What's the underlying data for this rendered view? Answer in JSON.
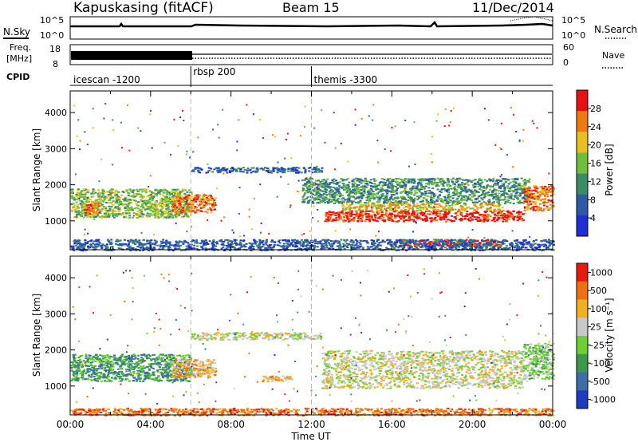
{
  "header": {
    "station": "Kapuskasing (fitACF)",
    "beam": "Beam 15",
    "date": "11/Dec/2014"
  },
  "top_panels": {
    "nsky_label": "N.Sky",
    "nsky_ticks": [
      "10^5",
      "10^0"
    ],
    "nsearch_label": "N.Search",
    "nsearch_ticks": [
      "10^5",
      "10^0"
    ],
    "freq_label_1": "Freq.",
    "freq_label_2": "[MHz]",
    "freq_ticks": [
      "18",
      "8"
    ],
    "nave_label": "Nave",
    "nave_ticks": [
      "60",
      "0"
    ],
    "cpid_label": "CPID",
    "cpid_segments": [
      {
        "label": "icescan -1200",
        "start": 0
      },
      {
        "label": "rbsp 200",
        "start": 6
      },
      {
        "label": "themis -3300",
        "start": 12
      }
    ]
  },
  "chart_data": [
    {
      "type": "heatmap",
      "quantity": "Power",
      "ylabel": "Slant Range [km]",
      "ylim": [
        200,
        4600
      ],
      "xlim": [
        0,
        24
      ],
      "yticks": [
        "1000",
        "2000",
        "3000",
        "4000"
      ],
      "colorbar_label": "Power [dB]",
      "colorbar_ticks": [
        "4",
        "8",
        "12",
        "16",
        "20",
        "24",
        "28"
      ],
      "colorbar_colors": [
        "#1f2fd8",
        "#2c5aa8",
        "#3a8c66",
        "#6fbf3a",
        "#e8c020",
        "#f07a10",
        "#e81010"
      ],
      "bands": [
        {
          "t0": 0.0,
          "t1": 6.0,
          "r0": 1100,
          "r1": 1900,
          "level": 3
        },
        {
          "t0": 0.6,
          "t1": 1.4,
          "r0": 1200,
          "r1": 1500,
          "level": 5
        },
        {
          "t0": 5.0,
          "t1": 7.2,
          "r0": 1250,
          "r1": 1750,
          "level": 5
        },
        {
          "t0": 6.0,
          "t1": 12.5,
          "r0": 2350,
          "r1": 2500,
          "level": 1
        },
        {
          "t0": 11.5,
          "t1": 22.8,
          "r0": 1500,
          "r1": 2200,
          "level": 2
        },
        {
          "t0": 12.6,
          "t1": 22.5,
          "r0": 1000,
          "r1": 1300,
          "level": 6
        },
        {
          "t0": 13.5,
          "t1": 21.5,
          "r0": 1300,
          "r1": 1500,
          "level": 4
        },
        {
          "t0": 16.5,
          "t1": 21.5,
          "r0": 300,
          "r1": 500,
          "level": 6
        },
        {
          "t0": 0.0,
          "t1": 24.0,
          "r0": 200,
          "r1": 500,
          "level": 1
        },
        {
          "t0": 22.5,
          "t1": 24.0,
          "r0": 1300,
          "r1": 2000,
          "level": 5
        }
      ]
    },
    {
      "type": "heatmap",
      "quantity": "Velocity",
      "ylabel": "Slant Range [km]",
      "ylim": [
        200,
        4600
      ],
      "xlim": [
        0,
        24
      ],
      "yticks": [
        "1000",
        "2000",
        "3000",
        "4000"
      ],
      "xticks": [
        "00:00",
        "04:00",
        "08:00",
        "12:00",
        "16:00",
        "20:00",
        "00:00"
      ],
      "xlabel": "Time UT",
      "colorbar_label": "Velocity [m s⁻¹]",
      "colorbar_ticks": [
        "1000",
        "500",
        "100",
        "25",
        "-25",
        "-100",
        "-500",
        "-1000"
      ],
      "colorbar_colors": [
        "#1c3cc8",
        "#3e6ea8",
        "#3a9a4a",
        "#6cd030",
        "#c8c8c8",
        "#f0b020",
        "#f07010",
        "#e81a10"
      ],
      "bands": [
        {
          "t0": 0.0,
          "t1": 6.0,
          "r0": 1150,
          "r1": 1900,
          "level": 2
        },
        {
          "t0": 5.0,
          "t1": 7.2,
          "r0": 1250,
          "r1": 1750,
          "level": 5
        },
        {
          "t0": 6.0,
          "t1": 12.5,
          "r0": 2300,
          "r1": 2500,
          "level": 4
        },
        {
          "t0": 12.5,
          "t1": 22.5,
          "r0": 950,
          "r1": 2000,
          "level": 4
        },
        {
          "t0": 9.5,
          "t1": 11.0,
          "r0": 1150,
          "r1": 1300,
          "level": 5
        },
        {
          "t0": 0.0,
          "t1": 24.0,
          "r0": 200,
          "r1": 400,
          "level": 6
        },
        {
          "t0": 22.5,
          "t1": 24.0,
          "r0": 1200,
          "r1": 2200,
          "level": 3
        }
      ]
    }
  ]
}
